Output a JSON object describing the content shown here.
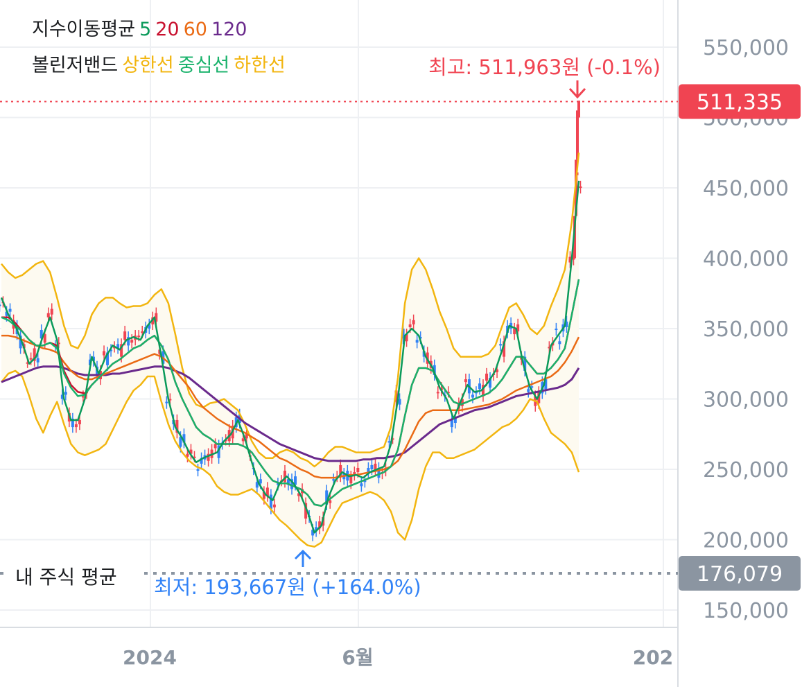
{
  "legend": {
    "ma_title": "지수이동평균",
    "ma_periods": [
      {
        "label": "5",
        "color": "#0a9a5a"
      },
      {
        "label": "20",
        "color": "#c8102e"
      },
      {
        "label": "60",
        "color": "#ea6a14"
      },
      {
        "label": "120",
        "color": "#6a2a8c"
      }
    ],
    "bb_title": "볼린저밴드",
    "bb_lines": [
      {
        "label": "상한선",
        "color": "#f2b50f"
      },
      {
        "label": "중심선",
        "color": "#19b26b"
      },
      {
        "label": "하한선",
        "color": "#f2b50f"
      }
    ]
  },
  "annotations": {
    "high_label": "최고: 511,963원 (-0.1%)",
    "low_label": "최저: 193,667원 (+164.0%)",
    "current_price_tag": "511,335",
    "my_avg_label": "내 주식 평균",
    "my_avg_tag": "176,079"
  },
  "colors": {
    "up": "#f04452",
    "down": "#3182f6",
    "high_text": "#f04452",
    "low_text": "#3182f6",
    "price_tag_bg": "#f04452",
    "avg_tag_bg": "#8b95a1",
    "band_fill": "#fdfaf0",
    "grid": "#eef0f3",
    "axis_text": "#8b95a1"
  },
  "chart_data": {
    "type": "candlestick",
    "y_ticks": [
      "550,000",
      "450,000",
      "400,000",
      "350,000",
      "300,000",
      "250,000",
      "200,000",
      "150,000"
    ],
    "y_tick_values": [
      550000,
      450000,
      400000,
      350000,
      300000,
      250000,
      200000,
      150000
    ],
    "ylim": [
      135000,
      565000
    ],
    "x_ticks": [
      "2024",
      "6월",
      "202"
    ],
    "x_tick_positions": [
      0.22,
      0.52,
      0.96
    ],
    "current_price": 511335,
    "highest": 511963,
    "lowest": 193667,
    "my_average": 176079,
    "series": [
      {
        "name": "5",
        "color": "#0a9a5a",
        "values": [
          372,
          360,
          352,
          340,
          325,
          330,
          345,
          358,
          342,
          300,
          285,
          285,
          300,
          330,
          318,
          330,
          338,
          335,
          342,
          344,
          342,
          352,
          358,
          330,
          300,
          280,
          272,
          262,
          255,
          258,
          260,
          262,
          270,
          275,
          285,
          272,
          255,
          240,
          232,
          228,
          240,
          245,
          240,
          232,
          220,
          205,
          210,
          230,
          242,
          248,
          245,
          246,
          244,
          248,
          250,
          252,
          268,
          300,
          345,
          350,
          345,
          330,
          322,
          308,
          300,
          286,
          298,
          310,
          305,
          306,
          312,
          320,
          335,
          352,
          350,
          325,
          308,
          300,
          310,
          338,
          345,
          352,
          400,
          455
        ]
      },
      {
        "name": "20",
        "color": "#c8102e",
        "values": [
          358,
          358,
          354,
          348,
          342,
          338,
          338,
          340,
          338,
          320,
          310,
          305,
          304,
          310,
          315,
          320,
          325,
          328,
          332,
          336,
          338,
          342,
          345,
          338,
          328,
          312,
          300,
          290,
          280,
          275,
          272,
          268,
          268,
          268,
          268,
          266,
          262,
          255,
          248,
          242,
          240,
          240,
          238,
          236,
          232,
          225,
          224,
          228,
          232,
          236,
          238,
          240,
          242,
          244,
          246,
          248,
          252,
          264,
          288,
          310,
          322,
          322,
          320,
          312,
          305,
          298,
          296,
          298,
          300,
          302,
          304,
          308,
          314,
          322,
          330,
          330,
          324,
          318,
          318,
          322,
          328,
          336,
          360,
          385
        ]
      },
      {
        "name": "60",
        "color": "#ea6a14",
        "values": [
          345,
          345,
          344,
          342,
          340,
          338,
          336,
          335,
          333,
          326,
          320,
          316,
          314,
          314,
          316,
          318,
          320,
          322,
          324,
          326,
          328,
          330,
          332,
          330,
          326,
          320,
          314,
          308,
          300,
          294,
          290,
          286,
          283,
          280,
          278,
          276,
          273,
          270,
          266,
          262,
          258,
          256,
          253,
          250,
          248,
          245,
          244,
          244,
          244,
          245,
          246,
          246,
          247,
          248,
          249,
          250,
          252,
          256,
          264,
          274,
          284,
          290,
          292,
          292,
          292,
          292,
          292,
          293,
          294,
          295,
          296,
          298,
          300,
          303,
          306,
          308,
          310,
          312,
          314,
          316,
          320,
          326,
          334,
          344
        ]
      },
      {
        "name": "120",
        "color": "#6a2a8c",
        "values": [
          312,
          314,
          316,
          318,
          320,
          322,
          323,
          323,
          323,
          322,
          320,
          318,
          317,
          317,
          317,
          317,
          318,
          318,
          319,
          320,
          321,
          322,
          323,
          323,
          322,
          320,
          318,
          315,
          311,
          307,
          303,
          299,
          295,
          291,
          287,
          283,
          280,
          277,
          274,
          271,
          268,
          266,
          264,
          262,
          260,
          258,
          257,
          256,
          256,
          256,
          256,
          256,
          257,
          257,
          258,
          258,
          259,
          260,
          262,
          266,
          270,
          274,
          278,
          282,
          284,
          286,
          288,
          290,
          292,
          293,
          294,
          296,
          298,
          300,
          302,
          303,
          304,
          305,
          306,
          307,
          308,
          310,
          314,
          322
        ]
      },
      {
        "name": "상한선",
        "color": "#f2b50f",
        "values": [
          396,
          390,
          386,
          388,
          392,
          396,
          398,
          390,
          372,
          352,
          338,
          336,
          345,
          360,
          368,
          372,
          372,
          368,
          365,
          366,
          366,
          368,
          374,
          378,
          368,
          346,
          322,
          304,
          296,
          294,
          297,
          298,
          300,
          296,
          292,
          282,
          270,
          262,
          258,
          258,
          262,
          264,
          262,
          258,
          256,
          252,
          256,
          262,
          266,
          266,
          264,
          262,
          262,
          262,
          264,
          266,
          280,
          315,
          368,
          392,
          400,
          392,
          378,
          362,
          350,
          336,
          330,
          330,
          330,
          330,
          332,
          338,
          352,
          365,
          368,
          360,
          350,
          346,
          352,
          366,
          378,
          392,
          426,
          475
        ]
      },
      {
        "name": "중심선",
        "color": "#19b26b",
        "values": [
          358,
          356,
          352,
          348,
          342,
          338,
          338,
          340,
          336,
          318,
          308,
          302,
          303,
          310,
          315,
          320,
          325,
          328,
          332,
          336,
          338,
          342,
          345,
          338,
          328,
          312,
          300,
          290,
          280,
          275,
          272,
          268,
          268,
          268,
          268,
          266,
          262,
          255,
          248,
          242,
          240,
          240,
          238,
          236,
          232,
          225,
          224,
          228,
          232,
          236,
          238,
          240,
          242,
          244,
          246,
          248,
          252,
          264,
          288,
          310,
          322,
          322,
          320,
          312,
          305,
          298,
          296,
          298,
          300,
          302,
          304,
          308,
          314,
          322,
          330,
          330,
          324,
          318,
          318,
          322,
          328,
          336,
          360,
          385
        ]
      },
      {
        "name": "하한선",
        "color": "#f2b50f",
        "values": [
          312,
          318,
          320,
          316,
          302,
          286,
          276,
          288,
          298,
          282,
          268,
          262,
          260,
          262,
          264,
          268,
          278,
          288,
          298,
          306,
          310,
          316,
          316,
          298,
          282,
          270,
          262,
          256,
          252,
          250,
          246,
          238,
          234,
          232,
          232,
          234,
          236,
          232,
          226,
          220,
          214,
          210,
          205,
          200,
          196,
          195,
          198,
          208,
          218,
          226,
          228,
          230,
          232,
          234,
          232,
          228,
          220,
          205,
          200,
          214,
          236,
          252,
          262,
          262,
          258,
          258,
          260,
          262,
          264,
          268,
          272,
          276,
          280,
          282,
          286,
          292,
          300,
          298,
          286,
          276,
          272,
          268,
          262,
          248
        ]
      }
    ]
  }
}
